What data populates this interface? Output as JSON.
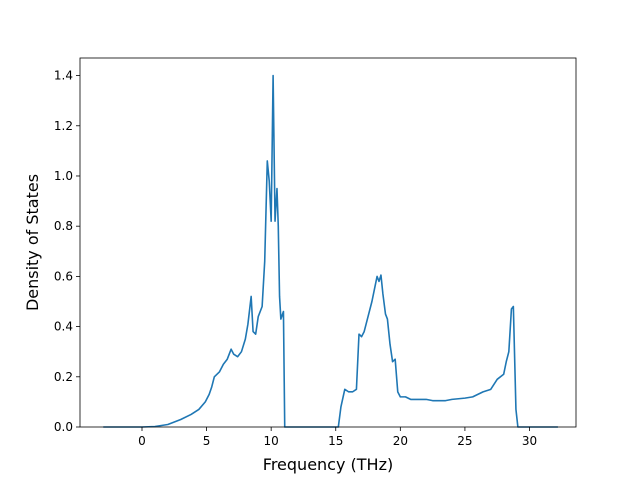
{
  "chart_data": {
    "type": "line",
    "title": "",
    "xlabel": "Frequency (THz)",
    "ylabel": "Density of States",
    "xlim": [
      -4.8,
      33.6
    ],
    "ylim": [
      0,
      1.47
    ],
    "xticks": [
      0,
      5,
      10,
      15,
      20,
      25,
      30
    ],
    "yticks": [
      0.0,
      0.2,
      0.4,
      0.6,
      0.8,
      1.0,
      1.2,
      1.4
    ],
    "ytick_labels": [
      "0.0",
      "0.2",
      "0.4",
      "0.6",
      "0.8",
      "1.0",
      "1.2",
      "1.4"
    ],
    "grid": false,
    "legend": "none",
    "line_color": "#1f77b4",
    "series": [
      {
        "x": [
          -3.0,
          0.0,
          1.0,
          2.0,
          3.0,
          3.8,
          4.4,
          4.9,
          5.2,
          5.4,
          5.6,
          6.0,
          6.3,
          6.6,
          6.9,
          7.1,
          7.4,
          7.7,
          8.0,
          8.2,
          8.45,
          8.6,
          8.8,
          9.0,
          9.3,
          9.5,
          9.7,
          9.85,
          10.0,
          10.15,
          10.3,
          10.45,
          10.55,
          10.65,
          10.75,
          10.95,
          11.05,
          11.2,
          15.2,
          15.4,
          15.7,
          16.0,
          16.3,
          16.6,
          16.8,
          17.0,
          17.2,
          17.5,
          17.8,
          18.0,
          18.2,
          18.35,
          18.5,
          18.65,
          18.85,
          19.0,
          19.2,
          19.4,
          19.6,
          19.8,
          20.0,
          20.4,
          20.8,
          22.0,
          22.5,
          23.5,
          24.0,
          25.0,
          25.6,
          26.0,
          26.4,
          27.0,
          27.5,
          28.0,
          28.2,
          28.4,
          28.6,
          28.75,
          28.95,
          29.1,
          29.3,
          32.2
        ],
        "y": [
          0.0,
          0.0,
          0.002,
          0.01,
          0.03,
          0.05,
          0.07,
          0.1,
          0.13,
          0.16,
          0.2,
          0.22,
          0.25,
          0.27,
          0.31,
          0.29,
          0.28,
          0.3,
          0.35,
          0.41,
          0.52,
          0.38,
          0.37,
          0.44,
          0.48,
          0.66,
          1.06,
          0.98,
          0.82,
          1.4,
          0.82,
          0.95,
          0.8,
          0.52,
          0.43,
          0.46,
          0.0,
          0.0,
          0.0,
          0.08,
          0.15,
          0.14,
          0.14,
          0.15,
          0.37,
          0.36,
          0.38,
          0.44,
          0.5,
          0.55,
          0.6,
          0.58,
          0.605,
          0.53,
          0.45,
          0.43,
          0.33,
          0.26,
          0.27,
          0.14,
          0.12,
          0.12,
          0.11,
          0.11,
          0.105,
          0.105,
          0.11,
          0.115,
          0.12,
          0.13,
          0.14,
          0.15,
          0.19,
          0.21,
          0.26,
          0.3,
          0.47,
          0.48,
          0.07,
          0.0,
          0.0,
          0.0
        ]
      }
    ]
  }
}
